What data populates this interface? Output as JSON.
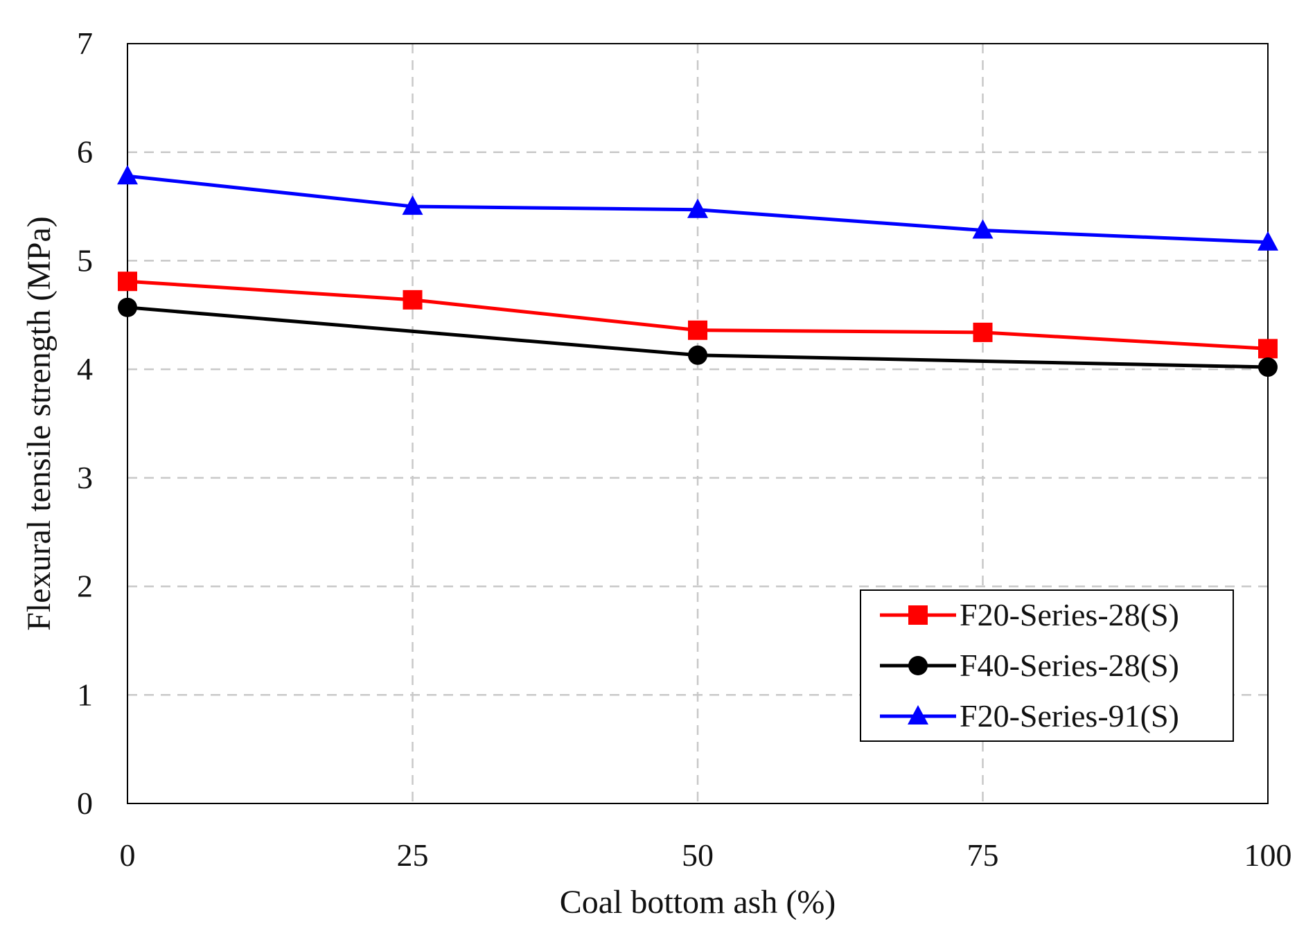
{
  "chart_data": {
    "type": "line",
    "title": "",
    "xlabel": "Coal bottom ash (%)",
    "ylabel": "Flexural tensile strength (MPa)",
    "x": [
      0,
      25,
      50,
      75,
      100
    ],
    "xlim": [
      0,
      100
    ],
    "ylim": [
      0,
      7
    ],
    "xticks": [
      "0",
      "25",
      "50",
      "75",
      "100"
    ],
    "yticks": [
      "0",
      "1",
      "2",
      "3",
      "4",
      "5",
      "6",
      "7"
    ],
    "grid": true,
    "legend_position": "bottom-right",
    "series": [
      {
        "name": "F20-Series-28(S)",
        "color": "#ff0000",
        "marker": "square",
        "values": [
          4.81,
          4.64,
          4.36,
          4.34,
          4.19
        ]
      },
      {
        "name": "F40-Series-28(S)",
        "color": "#000000",
        "marker": "circle",
        "values": [
          4.57,
          null,
          4.13,
          null,
          4.02
        ]
      },
      {
        "name": "F20-Series-91(S)",
        "color": "#0000ff",
        "marker": "triangle",
        "values": [
          5.78,
          5.5,
          5.47,
          5.28,
          5.17
        ]
      }
    ]
  }
}
